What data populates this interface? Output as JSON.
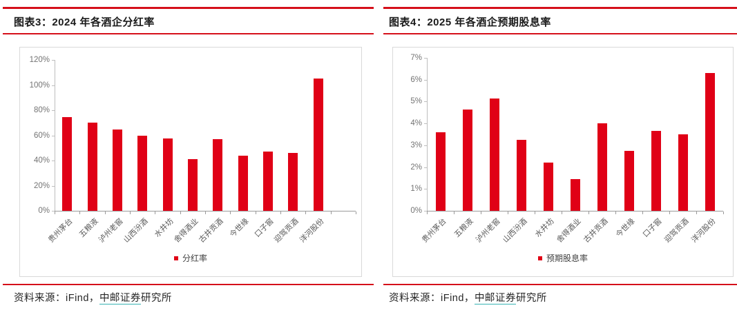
{
  "colors": {
    "bar": "#e00016",
    "rule": "#d50f1a",
    "link_underline": "#35b3b3"
  },
  "panels": [
    {
      "title": "图表3：2024 年各酒企分红率",
      "legend_label": "分红率",
      "source": {
        "prefix": "资料来源：iFind，",
        "link_text": "中邮证券",
        "suffix": "研究所"
      }
    },
    {
      "title": "图表4：2025 年各酒企预期股息率",
      "legend_label": "预期股息率",
      "source": {
        "prefix": "资料来源：iFind，",
        "link_text": "中邮证券",
        "suffix": "研究所"
      }
    }
  ],
  "chart_data": [
    {
      "type": "bar",
      "title": "图表3：2024 年各酒企分红率",
      "categories": [
        "贵州茅台",
        "五粮液",
        "泸州老窖",
        "山西汾酒",
        "水井坊",
        "舍得酒业",
        "古井贡酒",
        "今世缘",
        "口子窖",
        "迎驾贡酒",
        "洋河股份"
      ],
      "values": [
        74.5,
        70,
        64.5,
        60,
        57.5,
        41,
        57,
        44,
        47,
        46,
        105
      ],
      "unit": "%",
      "ylim": [
        0,
        120
      ],
      "yticks": [
        "0%",
        "20%",
        "40%",
        "60%",
        "80%",
        "100%",
        "120%"
      ],
      "xlabel": "",
      "ylabel": "",
      "grid": false,
      "legend": "分红率",
      "legend_position": "bottom",
      "bar_color": "#e00016"
    },
    {
      "type": "bar",
      "title": "图表4：2025 年各酒企预期股息率",
      "categories": [
        "贵州茅台",
        "五粮液",
        "泸州老窖",
        "山西汾酒",
        "水井坊",
        "舍得酒业",
        "古井贡酒",
        "今世缘",
        "口子窖",
        "迎驾贡酒",
        "洋河股份"
      ],
      "values": [
        3.6,
        4.65,
        5.15,
        3.25,
        2.2,
        1.45,
        4.0,
        2.75,
        3.65,
        3.5,
        6.3
      ],
      "unit": "%",
      "ylim": [
        0,
        7
      ],
      "yticks": [
        "0%",
        "1%",
        "2%",
        "3%",
        "4%",
        "5%",
        "6%",
        "7%"
      ],
      "xlabel": "",
      "ylabel": "",
      "grid": false,
      "legend": "预期股息率",
      "legend_position": "bottom",
      "bar_color": "#e00016"
    }
  ]
}
